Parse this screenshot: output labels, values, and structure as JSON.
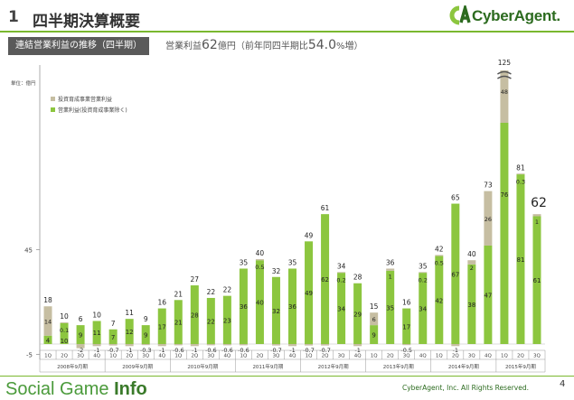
{
  "header": {
    "number": "1",
    "title": "四半期決算概要",
    "logo_text": "CyberAgent."
  },
  "section": {
    "badge": "連結営業利益の推移（四半期）",
    "headline_prefix": "営業利益",
    "headline_value": "62",
    "headline_unit": "億円（前年同四半期比",
    "headline_pct": "54.0",
    "headline_suffix": "%増）"
  },
  "footer": {
    "brand_light": "Social Game",
    "brand_bold": "Info",
    "copyright": "CyberAgent, Inc. All Rights Reserved.",
    "page": "4"
  },
  "colors": {
    "green": "#8cc63f",
    "tan": "#c6bea2",
    "accent": "#7ab82f"
  },
  "chart_data": {
    "type": "bar",
    "unit_label": "単位：億円",
    "legend_placement": "top-left",
    "legend": [
      "投資育成事業営業利益",
      "営業利益(投資育成事業除く)"
    ],
    "y_ticks": [
      45,
      -5
    ],
    "quarters": [
      "1Q",
      "2Q",
      "3Q",
      "4Q",
      "1Q",
      "2Q",
      "3Q",
      "4Q",
      "1Q",
      "2Q",
      "3Q",
      "4Q",
      "1Q",
      "2Q",
      "3Q",
      "4Q",
      "1Q",
      "2Q",
      "3Q",
      "4Q",
      "1Q",
      "2Q",
      "3Q",
      "4Q",
      "1Q",
      "2Q",
      "3Q",
      "4Q",
      "1Q",
      "2Q",
      "3Q"
    ],
    "fiscal_years": [
      {
        "label": "2008年9月期",
        "count": 4
      },
      {
        "label": "2009年9月期",
        "count": 4
      },
      {
        "label": "2010年9月期",
        "count": 4
      },
      {
        "label": "2011年9月期",
        "count": 4
      },
      {
        "label": "2012年9月期",
        "count": 4
      },
      {
        "label": "2013年9月期",
        "count": 4
      },
      {
        "label": "2014年9月期",
        "count": 4
      },
      {
        "label": "2015年9月期",
        "count": 3
      }
    ],
    "totals": [
      "18",
      "10",
      "6",
      "10",
      "7",
      "11",
      "9",
      "16",
      "21",
      "27",
      "22",
      "22",
      "35",
      "40",
      "32",
      "35",
      "49",
      "61",
      "34",
      "28",
      "15",
      "36",
      "16",
      "35",
      "42",
      "65",
      "40",
      "73",
      "125",
      "81",
      "62"
    ],
    "core_labels": [
      "4",
      "10",
      "9",
      "11",
      "7",
      "12",
      "9",
      "17",
      "21",
      "28",
      "22",
      "23",
      "36",
      "40",
      "32",
      "36",
      "49",
      "62",
      "34",
      "29",
      "9",
      "35",
      "17",
      "34",
      "42",
      "67",
      "38",
      "47",
      "76",
      "81",
      "61"
    ],
    "inv_labels": [
      "14",
      "0.1",
      "-2",
      "-1",
      "-0.7",
      "-1",
      "-0.3",
      "-1",
      "-0.6",
      "-1",
      "-0.6",
      "-0.6",
      "-0.6",
      "0.5",
      "-0.7",
      "-1",
      "-0.7",
      "-0.7",
      "0.2",
      "-1",
      "6",
      "1",
      "-0.5",
      "0.2",
      "0.5",
      "-1",
      "2",
      "26",
      "48",
      "0.3",
      "1"
    ],
    "core": [
      4,
      10,
      9,
      11,
      7,
      12,
      9,
      17,
      21,
      28,
      22,
      23,
      36,
      40,
      32,
      36,
      49,
      62,
      34,
      29,
      9,
      35,
      17,
      34,
      42,
      67,
      38,
      47,
      76,
      81,
      61
    ],
    "investment": [
      14,
      0.1,
      -2,
      -1,
      -0.7,
      -1,
      -0.3,
      -1,
      -0.6,
      -1,
      -0.6,
      -0.6,
      -0.6,
      0.5,
      -0.7,
      -1,
      -0.7,
      -0.7,
      0.2,
      -1,
      6,
      1,
      -0.5,
      0.2,
      0.5,
      -1,
      2,
      26,
      48,
      0.3,
      1
    ],
    "axis_break_on_index": 28,
    "highlight_total_index": 30
  }
}
